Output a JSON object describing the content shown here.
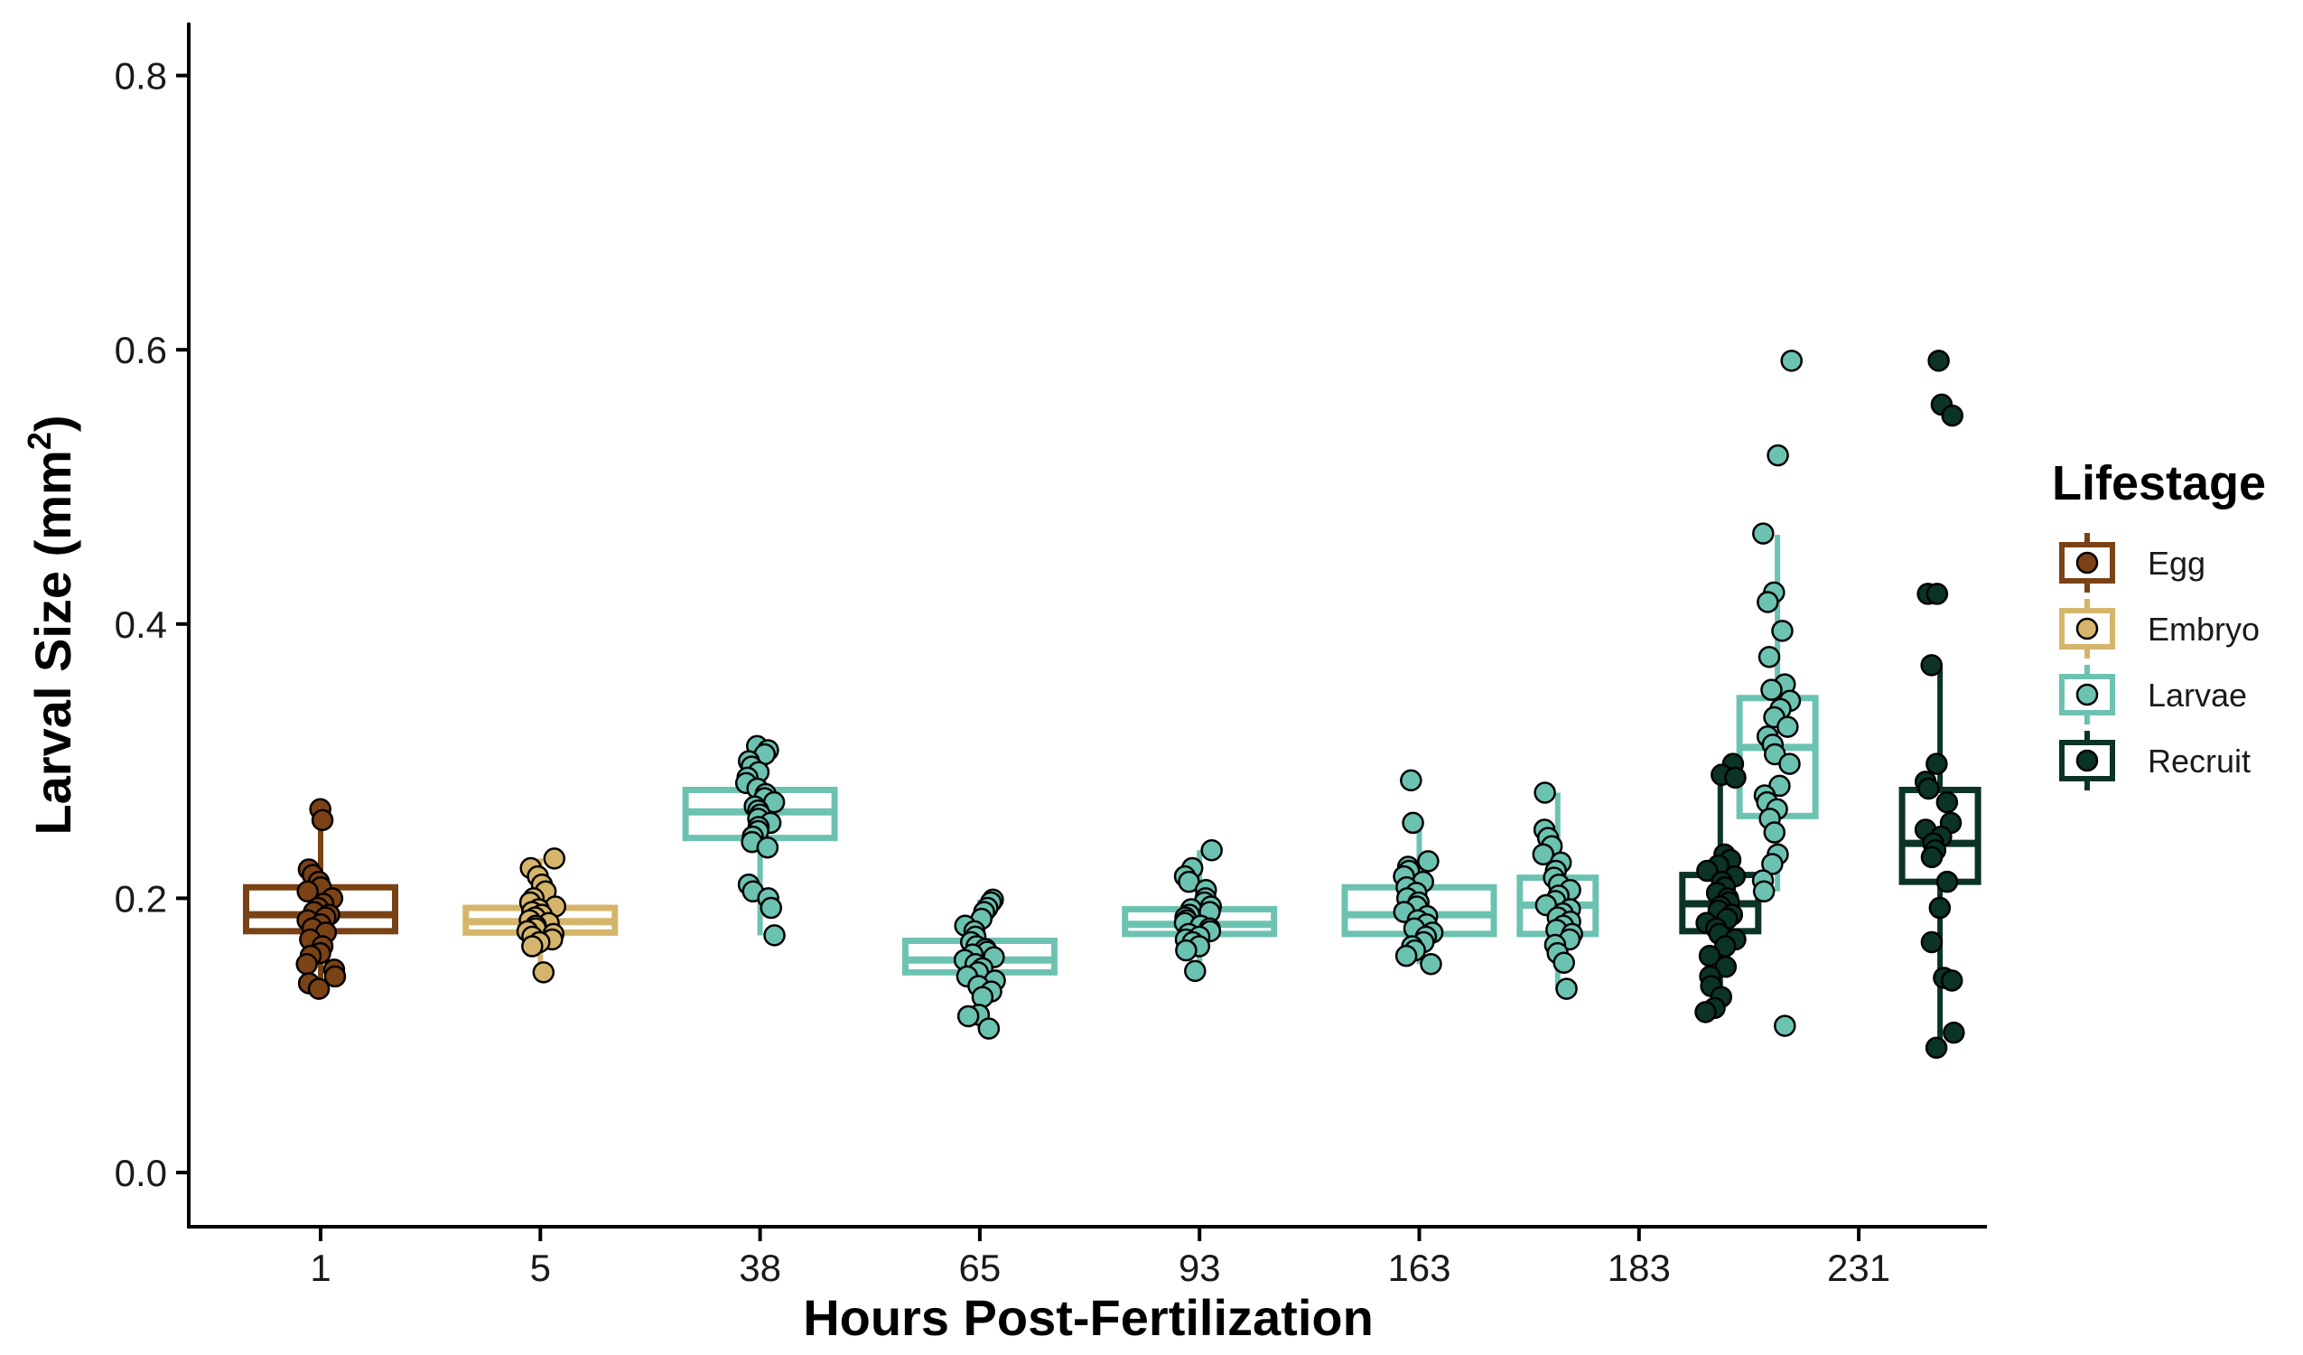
{
  "chart_data": {
    "type": "box",
    "xlabel": "Hours Post-Fertilization",
    "ylabel": "Larval Size (mm",
    "ylabel_sup": "2",
    "ylabel_close": ")",
    "ylim": [
      -0.04,
      0.84
    ],
    "y_ticks": [
      "0.0",
      "0.2",
      "0.4",
      "0.6",
      "0.8"
    ],
    "categories": [
      "1",
      "5",
      "38",
      "65",
      "93",
      "163",
      "183",
      "231"
    ],
    "grid": false,
    "legend": {
      "title": "Lifestage",
      "placement": "right",
      "items": [
        {
          "label": "Egg",
          "color": "#7a4215"
        },
        {
          "label": "Embryo",
          "color": "#d5b56b"
        },
        {
          "label": "Larvae",
          "color": "#6cc2b0"
        },
        {
          "label": "Recruit",
          "color": "#0b3326"
        }
      ]
    },
    "boxes": [
      {
        "category": "1",
        "lifestage": "Egg",
        "offset": 0,
        "q1": 0.176,
        "median": 0.188,
        "q3": 0.208,
        "whisker_low": 0.133,
        "whisker_high": 0.265
      },
      {
        "category": "5",
        "lifestage": "Embryo",
        "offset": 0,
        "q1": 0.175,
        "median": 0.183,
        "q3": 0.193,
        "whisker_low": 0.146,
        "whisker_high": 0.229
      },
      {
        "category": "38",
        "lifestage": "Larvae",
        "offset": 0,
        "q1": 0.244,
        "median": 0.263,
        "q3": 0.279,
        "whisker_low": 0.173,
        "whisker_high": 0.311
      },
      {
        "category": "65",
        "lifestage": "Larvae",
        "offset": 0,
        "q1": 0.146,
        "median": 0.155,
        "q3": 0.169,
        "whisker_low": 0.105,
        "whisker_high": 0.199
      },
      {
        "category": "93",
        "lifestage": "Larvae",
        "offset": 0,
        "q1": 0.174,
        "median": 0.181,
        "q3": 0.192,
        "whisker_low": 0.147,
        "whisker_high": 0.235
      },
      {
        "category": "163",
        "lifestage": "Larvae",
        "offset": 0,
        "q1": 0.174,
        "median": 0.188,
        "q3": 0.208,
        "whisker_low": 0.152,
        "whisker_high": 0.256
      },
      {
        "category": "183",
        "lifestage": "Larvae",
        "offset": -0.5,
        "q1": 0.174,
        "median": 0.195,
        "q3": 0.215,
        "whisker_low": 0.133,
        "whisker_high": 0.277
      },
      {
        "category": "183",
        "lifestage": "Recruit",
        "offset": 0.5,
        "q1": 0.176,
        "median": 0.196,
        "q3": 0.217,
        "whisker_low": 0.117,
        "whisker_high": 0.298
      },
      {
        "category": "231",
        "lifestage": "Larvae",
        "offset": -0.5,
        "q1": 0.26,
        "median": 0.31,
        "q3": 0.346,
        "whisker_low": 0.205,
        "whisker_high": 0.465
      },
      {
        "category": "231",
        "lifestage": "Recruit",
        "offset": 0.5,
        "q1": 0.212,
        "median": 0.24,
        "q3": 0.279,
        "whisker_low": 0.091,
        "whisker_high": 0.37
      }
    ],
    "points": [
      {
        "category": "1",
        "lifestage": "Egg",
        "offset": 0,
        "values": [
          0.265,
          0.257,
          0.221,
          0.217,
          0.212,
          0.208,
          0.205,
          0.2,
          0.196,
          0.193,
          0.19,
          0.188,
          0.186,
          0.184,
          0.181,
          0.178,
          0.175,
          0.17,
          0.165,
          0.16,
          0.158,
          0.152,
          0.148,
          0.143,
          0.138,
          0.134
        ]
      },
      {
        "category": "5",
        "lifestage": "Embryo",
        "offset": 0,
        "values": [
          0.229,
          0.222,
          0.216,
          0.21,
          0.205,
          0.2,
          0.197,
          0.194,
          0.192,
          0.19,
          0.188,
          0.186,
          0.184,
          0.182,
          0.18,
          0.178,
          0.176,
          0.174,
          0.172,
          0.17,
          0.168,
          0.165,
          0.146
        ]
      },
      {
        "category": "38",
        "lifestage": "Larvae",
        "offset": 0,
        "values": [
          0.311,
          0.308,
          0.305,
          0.3,
          0.296,
          0.292,
          0.288,
          0.284,
          0.28,
          0.276,
          0.273,
          0.27,
          0.267,
          0.264,
          0.261,
          0.258,
          0.255,
          0.252,
          0.249,
          0.245,
          0.241,
          0.237,
          0.21,
          0.205,
          0.2,
          0.193,
          0.173
        ]
      },
      {
        "category": "65",
        "lifestage": "Larvae",
        "offset": 0,
        "values": [
          0.199,
          0.197,
          0.193,
          0.19,
          0.185,
          0.18,
          0.176,
          0.172,
          0.168,
          0.165,
          0.163,
          0.161,
          0.159,
          0.157,
          0.155,
          0.152,
          0.149,
          0.146,
          0.143,
          0.14,
          0.136,
          0.132,
          0.128,
          0.115,
          0.114,
          0.105
        ]
      },
      {
        "category": "93",
        "lifestage": "Larvae",
        "offset": 0,
        "values": [
          0.235,
          0.222,
          0.216,
          0.212,
          0.206,
          0.2,
          0.197,
          0.194,
          0.192,
          0.19,
          0.188,
          0.186,
          0.184,
          0.182,
          0.18,
          0.178,
          0.176,
          0.174,
          0.172,
          0.17,
          0.168,
          0.165,
          0.162,
          0.147
        ]
      },
      {
        "category": "163",
        "lifestage": "Larvae",
        "offset": 0,
        "values": [
          0.286,
          0.255,
          0.227,
          0.223,
          0.22,
          0.216,
          0.212,
          0.208,
          0.204,
          0.2,
          0.197,
          0.194,
          0.19,
          0.187,
          0.184,
          0.181,
          0.178,
          0.175,
          0.172,
          0.168,
          0.165,
          0.162,
          0.158,
          0.152
        ]
      },
      {
        "category": "183",
        "lifestage": "Larvae",
        "offset": -0.5,
        "values": [
          0.277,
          0.25,
          0.244,
          0.238,
          0.232,
          0.226,
          0.22,
          0.215,
          0.21,
          0.206,
          0.202,
          0.198,
          0.195,
          0.192,
          0.189,
          0.186,
          0.183,
          0.18,
          0.177,
          0.174,
          0.17,
          0.166,
          0.16,
          0.153,
          0.134
        ]
      },
      {
        "category": "183",
        "lifestage": "Recruit",
        "offset": 0.5,
        "values": [
          0.298,
          0.29,
          0.288,
          0.232,
          0.228,
          0.224,
          0.22,
          0.216,
          0.212,
          0.208,
          0.204,
          0.2,
          0.197,
          0.194,
          0.191,
          0.188,
          0.185,
          0.182,
          0.178,
          0.174,
          0.17,
          0.165,
          0.158,
          0.15,
          0.143,
          0.136,
          0.128,
          0.12,
          0.117
        ]
      },
      {
        "category": "231",
        "lifestage": "Larvae",
        "offset": -0.5,
        "values": [
          0.592,
          0.523,
          0.466,
          0.423,
          0.416,
          0.395,
          0.376,
          0.356,
          0.352,
          0.344,
          0.338,
          0.332,
          0.325,
          0.318,
          0.312,
          0.305,
          0.298,
          0.282,
          0.275,
          0.27,
          0.265,
          0.258,
          0.248,
          0.232,
          0.225,
          0.213,
          0.205,
          0.107
        ]
      },
      {
        "category": "231",
        "lifestage": "Recruit",
        "offset": 0.5,
        "values": [
          0.592,
          0.56,
          0.552,
          0.422,
          0.422,
          0.37,
          0.298,
          0.285,
          0.28,
          0.27,
          0.255,
          0.25,
          0.245,
          0.24,
          0.235,
          0.23,
          0.212,
          0.193,
          0.168,
          0.142,
          0.14,
          0.102,
          0.091
        ]
      }
    ]
  }
}
